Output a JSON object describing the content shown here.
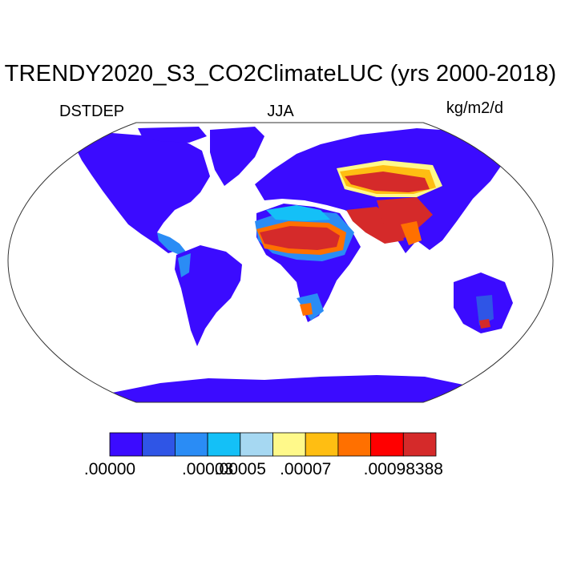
{
  "title": "TRENDY2020_S3_CO2ClimateLUC (yrs 2000-2018)",
  "variable": "DSTDEP",
  "season": "JJA",
  "units": "kg/m2/d",
  "colorbar": {
    "colors": [
      "#3b0bff",
      "#2f55e6",
      "#2a8cf5",
      "#14c0f7",
      "#a6d8f2",
      "#fff98a",
      "#ffbe12",
      "#ff7000",
      "#ff0000",
      "#d52a2a"
    ],
    "labels": [
      {
        "text": ".00000",
        "boundary_index": 0
      },
      {
        "text": ".00003",
        "boundary_index": 3
      },
      {
        "text": ".00005",
        "boundary_index": 4
      },
      {
        "text": ".00007",
        "boundary_index": 6
      },
      {
        "text": ".00098388",
        "boundary_index": 9
      }
    ]
  },
  "colors": {
    "land_low": "#3b0bff",
    "outline": "#333333"
  }
}
